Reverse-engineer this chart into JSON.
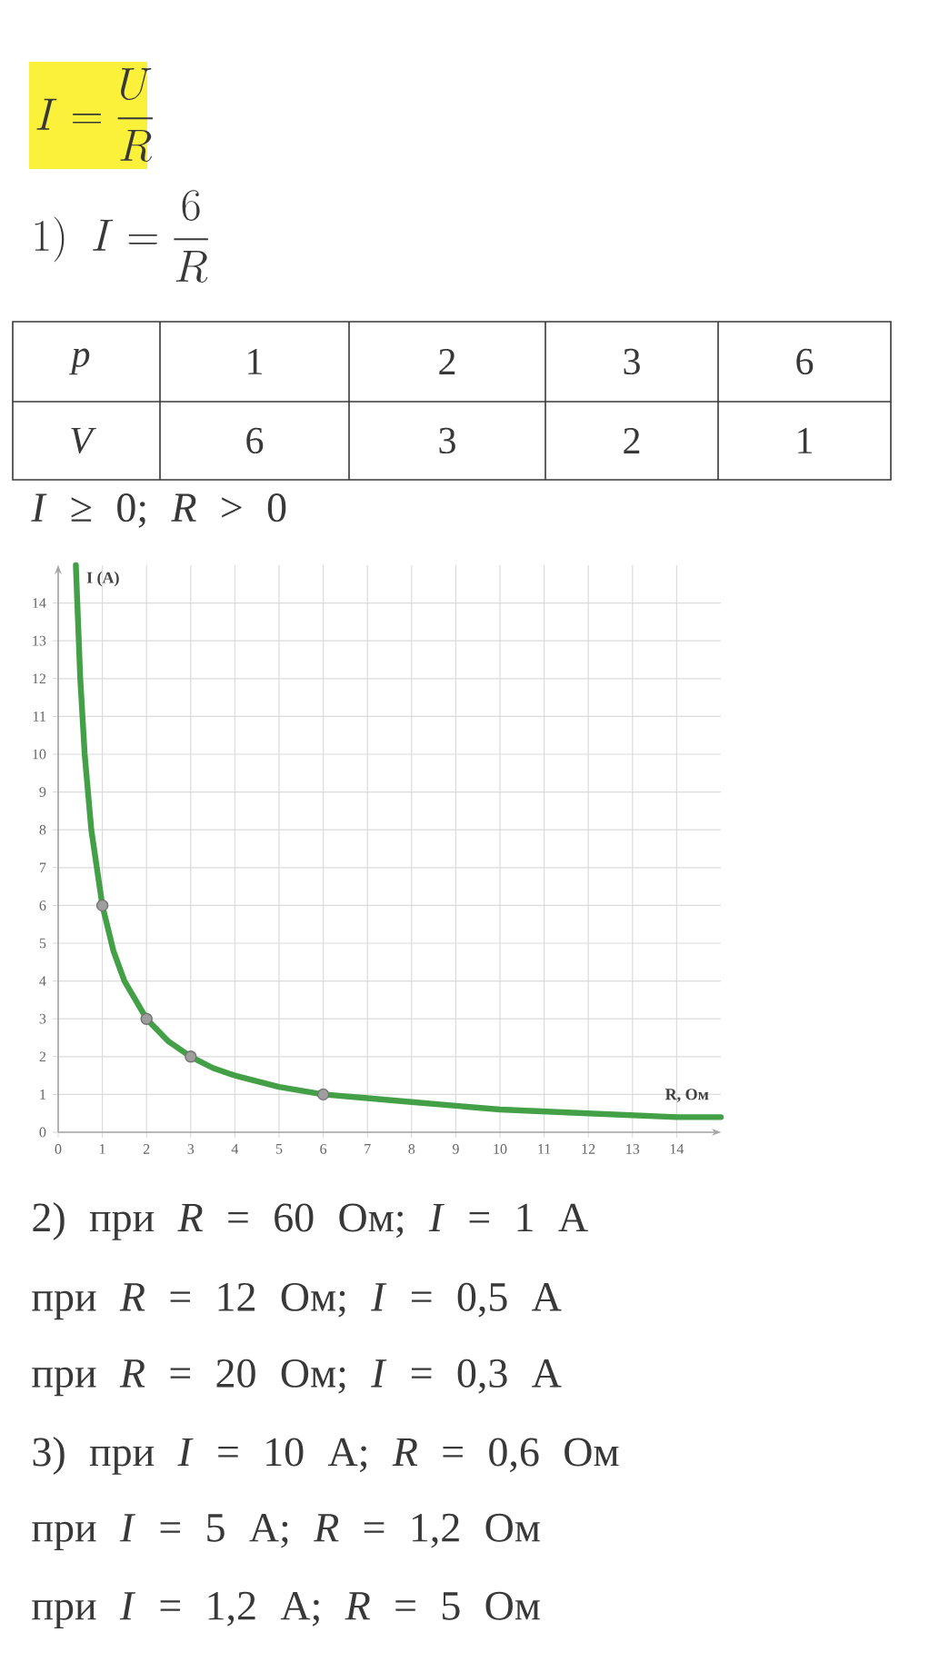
{
  "chart_data": {
    "type": "line",
    "annotations": [
      "I=\\frac{U}{R}",
      "1)\\ I=\\frac{6}{R}",
      "p",
      "1",
      "2",
      "3",
      "6",
      "V",
      "6",
      "3",
      "2",
      "1",
      "*I* ≥ 0; *R* > 0",
      "2) при *R* = 60 Ом; *I* = 1 А",
      "при *R* = 12 Ом; *I* = 0,5 А",
      "при *R* = 20 Ом; *I* = 0,3 А",
      "3) при *I* = 10 А; *R* = 0,6 Ом",
      "при *I* = 5 А; *R* = 1,2 Ом",
      "при *I* = 1,2 А; *R* = 5 Ом"
    ],
    "xlabel": "R, Ом",
    "ylabel": "I (A)",
    "xlim": [
      0,
      15
    ],
    "ylim": [
      0,
      15
    ],
    "xticks": [
      0,
      1,
      2,
      3,
      4,
      5,
      6,
      7,
      8,
      9,
      10,
      11,
      12,
      13,
      14
    ],
    "yticks": [
      0,
      1,
      2,
      3,
      4,
      5,
      6,
      7,
      8,
      9,
      10,
      11,
      12,
      13,
      14
    ],
    "grid": true,
    "series": [
      {
        "color": "#43a047",
        "x": [
          0.4,
          0.5,
          0.6,
          0.75,
          1,
          1.25,
          1.5,
          2,
          2.5,
          3,
          3.5,
          4,
          5,
          6,
          7,
          8,
          9,
          10,
          12,
          14,
          15
        ],
        "values": [
          15,
          12,
          10,
          8,
          6,
          4.8,
          4,
          3,
          2.4,
          2,
          1.7,
          1.5,
          1.2,
          1,
          0.9,
          0.8,
          0.7,
          0.6,
          0.5,
          0.4,
          0.4
        ]
      },
      {
        "type": "scatter",
        "color": "#9e9e9e",
        "marker": "circle",
        "x": [
          1,
          2,
          3,
          6
        ],
        "values": [
          6,
          3,
          2,
          1
        ]
      }
    ]
  }
}
